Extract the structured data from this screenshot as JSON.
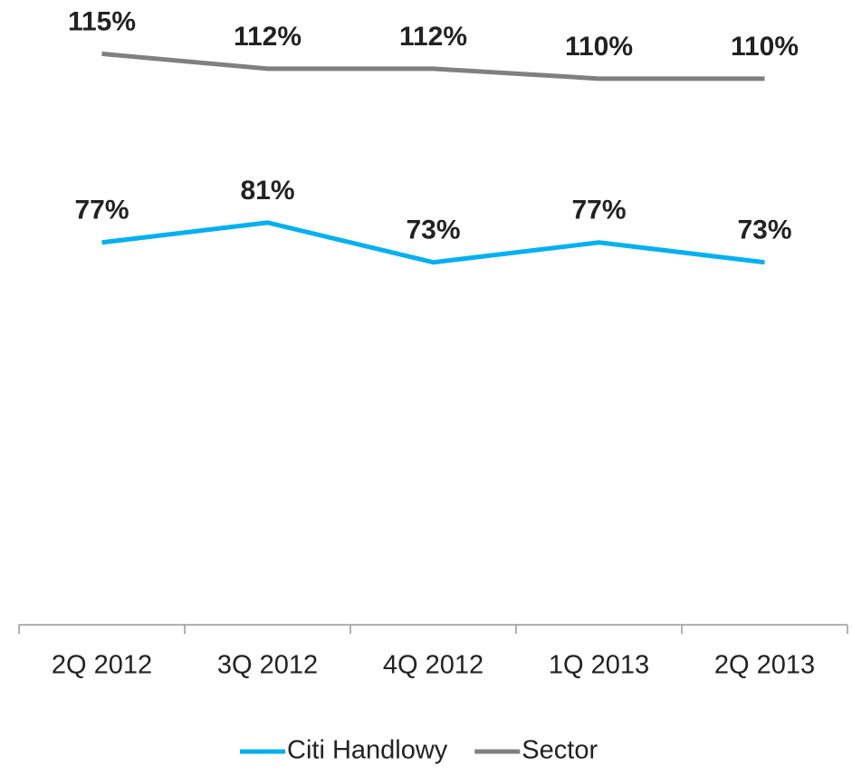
{
  "chart_data": {
    "type": "line",
    "categories": [
      "2Q 2012",
      "3Q 2012",
      "4Q 2012",
      "1Q 2013",
      "2Q 2013"
    ],
    "series": [
      {
        "name": "Citi Handlowy",
        "color": "#00b0f0",
        "values": [
          77,
          81,
          73,
          77,
          73
        ],
        "value_labels": [
          "77%",
          "81%",
          "73%",
          "77%",
          "73%"
        ]
      },
      {
        "name": "Sector",
        "color": "#808080",
        "values": [
          115,
          112,
          112,
          110,
          110
        ],
        "value_labels": [
          "115%",
          "112%",
          "112%",
          "110%",
          "110%"
        ]
      }
    ],
    "ylim": [
      0,
      120
    ],
    "legend": "bottom"
  }
}
